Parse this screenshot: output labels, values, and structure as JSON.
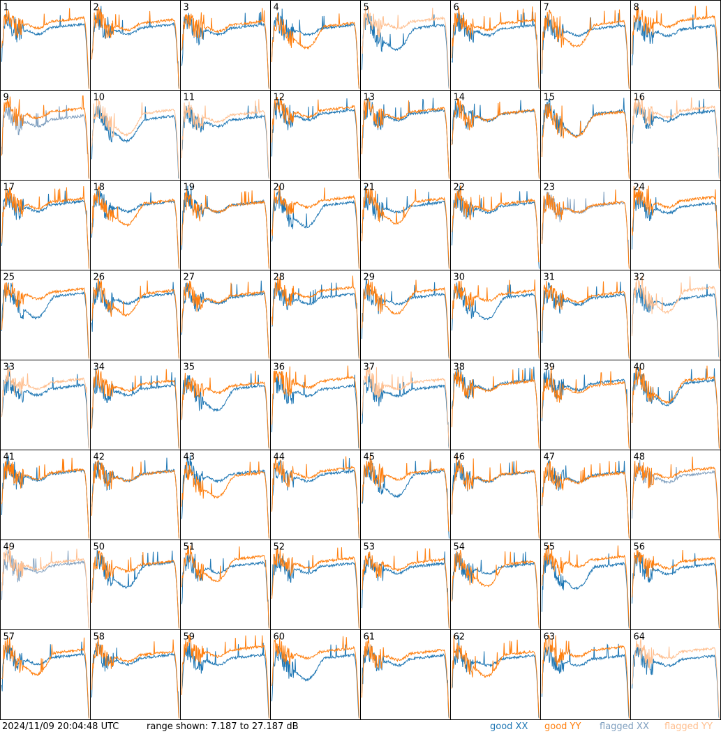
{
  "timestamp": "2024/11/09 20:04:48 UTC",
  "range_text": "range shown: 7.187 to 27.187 dB",
  "legend": {
    "good_xx": "good XX",
    "good_yy": "good YY",
    "flagged_xx": "flagged XX",
    "flagged_yy": "flagged YY"
  },
  "colors": {
    "good_xx": "#1f77b4",
    "good_yy": "#ff7f0e",
    "flagged_xx": "#7f9fbf",
    "flagged_yy": "#ffbf8f"
  },
  "chart_data": {
    "type": "line",
    "grid_rows": 8,
    "grid_cols": 8,
    "y_unit": "dB",
    "ylim": [
      7.187,
      27.187
    ],
    "tiles": [
      {
        "id": "1",
        "xx": "good",
        "yy": "good"
      },
      {
        "id": "2",
        "xx": "good",
        "yy": "good"
      },
      {
        "id": "3",
        "xx": "good",
        "yy": "good"
      },
      {
        "id": "4",
        "xx": "good",
        "yy": "good"
      },
      {
        "id": "5",
        "xx": "good",
        "yy": "flagged"
      },
      {
        "id": "6",
        "xx": "good",
        "yy": "good"
      },
      {
        "id": "7",
        "xx": "good",
        "yy": "good"
      },
      {
        "id": "8",
        "xx": "good",
        "yy": "good"
      },
      {
        "id": "9",
        "xx": "flagged",
        "yy": "good"
      },
      {
        "id": "10",
        "xx": "good",
        "yy": "flagged"
      },
      {
        "id": "11",
        "xx": "good",
        "yy": "flagged"
      },
      {
        "id": "12",
        "xx": "good",
        "yy": "good"
      },
      {
        "id": "13",
        "xx": "good",
        "yy": "good"
      },
      {
        "id": "14",
        "xx": "good",
        "yy": "good"
      },
      {
        "id": "15",
        "xx": "good",
        "yy": "good"
      },
      {
        "id": "16",
        "xx": "good",
        "yy": "flagged"
      },
      {
        "id": "17",
        "xx": "good",
        "yy": "good"
      },
      {
        "id": "18",
        "xx": "good",
        "yy": "good"
      },
      {
        "id": "19",
        "xx": "good",
        "yy": "good"
      },
      {
        "id": "20",
        "xx": "good",
        "yy": "good"
      },
      {
        "id": "21",
        "xx": "good",
        "yy": "good"
      },
      {
        "id": "22",
        "xx": "good",
        "yy": "good"
      },
      {
        "id": "23",
        "xx": "flagged",
        "yy": "good"
      },
      {
        "id": "24",
        "xx": "good",
        "yy": "good"
      },
      {
        "id": "25",
        "xx": "good",
        "yy": "good"
      },
      {
        "id": "26",
        "xx": "good",
        "yy": "good"
      },
      {
        "id": "27",
        "xx": "good",
        "yy": "good"
      },
      {
        "id": "28",
        "xx": "good",
        "yy": "good"
      },
      {
        "id": "29",
        "xx": "good",
        "yy": "good"
      },
      {
        "id": "30",
        "xx": "good",
        "yy": "good"
      },
      {
        "id": "31",
        "xx": "good",
        "yy": "good"
      },
      {
        "id": "32",
        "xx": "good",
        "yy": "flagged"
      },
      {
        "id": "33",
        "xx": "good",
        "yy": "flagged"
      },
      {
        "id": "34",
        "xx": "good",
        "yy": "good"
      },
      {
        "id": "35",
        "xx": "good",
        "yy": "good"
      },
      {
        "id": "36",
        "xx": "good",
        "yy": "good"
      },
      {
        "id": "37",
        "xx": "good",
        "yy": "flagged"
      },
      {
        "id": "38",
        "xx": "good",
        "yy": "good"
      },
      {
        "id": "39",
        "xx": "good",
        "yy": "good"
      },
      {
        "id": "40",
        "xx": "good",
        "yy": "good"
      },
      {
        "id": "41",
        "xx": "good",
        "yy": "good"
      },
      {
        "id": "42",
        "xx": "good",
        "yy": "good"
      },
      {
        "id": "43",
        "xx": "good",
        "yy": "good"
      },
      {
        "id": "44",
        "xx": "good",
        "yy": "good"
      },
      {
        "id": "45",
        "xx": "good",
        "yy": "good"
      },
      {
        "id": "46",
        "xx": "good",
        "yy": "good"
      },
      {
        "id": "47",
        "xx": "good",
        "yy": "good"
      },
      {
        "id": "48",
        "xx": "flagged",
        "yy": "good"
      },
      {
        "id": "49",
        "xx": "flagged",
        "yy": "flagged"
      },
      {
        "id": "50",
        "xx": "good",
        "yy": "good"
      },
      {
        "id": "51",
        "xx": "good",
        "yy": "good"
      },
      {
        "id": "52",
        "xx": "good",
        "yy": "good"
      },
      {
        "id": "53",
        "xx": "good",
        "yy": "good"
      },
      {
        "id": "54",
        "xx": "good",
        "yy": "good"
      },
      {
        "id": "55",
        "xx": "good",
        "yy": "good"
      },
      {
        "id": "56",
        "xx": "good",
        "yy": "good"
      },
      {
        "id": "57",
        "xx": "good",
        "yy": "good"
      },
      {
        "id": "58",
        "xx": "good",
        "yy": "good"
      },
      {
        "id": "59",
        "xx": "good",
        "yy": "good"
      },
      {
        "id": "60",
        "xx": "good",
        "yy": "good"
      },
      {
        "id": "61",
        "xx": "good",
        "yy": "good"
      },
      {
        "id": "62",
        "xx": "good",
        "yy": "good"
      },
      {
        "id": "63",
        "xx": "good",
        "yy": "good"
      },
      {
        "id": "64",
        "xx": "good",
        "yy": "flagged"
      }
    ]
  }
}
